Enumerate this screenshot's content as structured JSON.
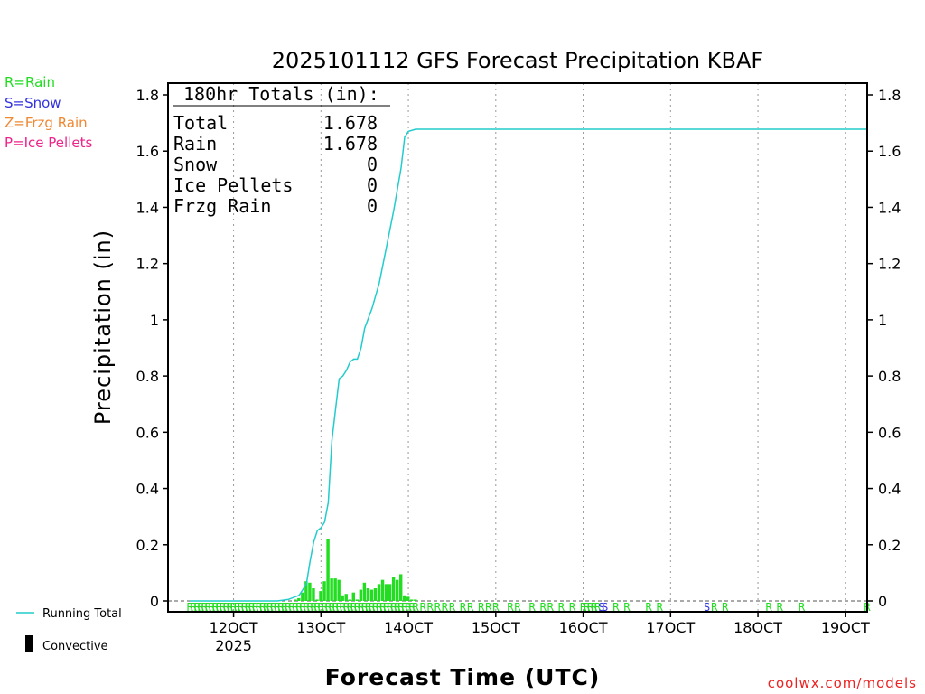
{
  "chart_data": {
    "type": "bar+line",
    "title": "2025101112 GFS Forecast Precipitation KBAF",
    "xlabel": "Forecast Time (UTC)",
    "ylabel": "Precipitation (in)",
    "ylim": [
      0,
      1.85
    ],
    "y_ticks": [
      "0",
      "0.2",
      "0.4",
      "0.6",
      "0.8",
      "1",
      "1.2",
      "1.4",
      "1.6",
      "1.8"
    ],
    "xlim_hours": [
      -6,
      186
    ],
    "x_ticks": [
      {
        "hour": 12,
        "label": "12OCT",
        "sub": "2025"
      },
      {
        "hour": 36,
        "label": "13OCT"
      },
      {
        "hour": 60,
        "label": "14OCT"
      },
      {
        "hour": 84,
        "label": "15OCT"
      },
      {
        "hour": 108,
        "label": "16OCT"
      },
      {
        "hour": 132,
        "label": "17OCT"
      },
      {
        "hour": 156,
        "label": "18OCT"
      },
      {
        "hour": 180,
        "label": "19OCT"
      }
    ],
    "legend": {
      "rain": {
        "label": "R=Rain",
        "color": "#22dd22"
      },
      "snow": {
        "label": "S=Snow",
        "color": "#3333dd"
      },
      "frzg": {
        "label": "Z=Frzg Rain",
        "color": "#ee8833"
      },
      "ice": {
        "label": "P=Ice Pellets",
        "color": "#ee2288"
      },
      "running_total": {
        "label": "Running Total",
        "color": "#22cccc"
      },
      "convective": {
        "label": "Convective",
        "color": "#000000"
      }
    },
    "totals_box": {
      "header": "180hr Totals (in):",
      "rows": [
        {
          "label": "Total",
          "value": "1.678"
        },
        {
          "label": "Rain",
          "value": "1.678"
        },
        {
          "label": "Snow",
          "value": "0"
        },
        {
          "label": "Ice Pellets",
          "value": "0"
        },
        {
          "label": "Frzg Rain",
          "value": "0"
        }
      ]
    },
    "running_total": [
      [
        0,
        0
      ],
      [
        24,
        0
      ],
      [
        27,
        0.005
      ],
      [
        30,
        0.02
      ],
      [
        31,
        0.04
      ],
      [
        32,
        0.06
      ],
      [
        33,
        0.14
      ],
      [
        34,
        0.21
      ],
      [
        35,
        0.25
      ],
      [
        36,
        0.26
      ],
      [
        37,
        0.28
      ],
      [
        38,
        0.35
      ],
      [
        39,
        0.57
      ],
      [
        40,
        0.68
      ],
      [
        41,
        0.79
      ],
      [
        42,
        0.8
      ],
      [
        43,
        0.82
      ],
      [
        44,
        0.85
      ],
      [
        45,
        0.86
      ],
      [
        46,
        0.86
      ],
      [
        47,
        0.9
      ],
      [
        48,
        0.97
      ],
      [
        50,
        1.04
      ],
      [
        52,
        1.13
      ],
      [
        54,
        1.26
      ],
      [
        56,
        1.39
      ],
      [
        58,
        1.54
      ],
      [
        59,
        1.65
      ],
      [
        60,
        1.67
      ],
      [
        62,
        1.678
      ],
      [
        186,
        1.678
      ]
    ],
    "bars": [
      [
        29,
        0.005
      ],
      [
        30,
        0.01
      ],
      [
        31,
        0.03
      ],
      [
        32,
        0.07
      ],
      [
        33,
        0.065
      ],
      [
        34,
        0.045
      ],
      [
        35,
        0.005
      ],
      [
        36,
        0.035
      ],
      [
        37,
        0.07
      ],
      [
        38,
        0.22
      ],
      [
        39,
        0.08
      ],
      [
        40,
        0.08
      ],
      [
        41,
        0.075
      ],
      [
        42,
        0.02
      ],
      [
        43,
        0.025
      ],
      [
        44,
        0.005
      ],
      [
        45,
        0.03
      ],
      [
        46,
        0.005
      ],
      [
        47,
        0.04
      ],
      [
        48,
        0.065
      ],
      [
        49,
        0.045
      ],
      [
        50,
        0.04
      ],
      [
        51,
        0.045
      ],
      [
        52,
        0.06
      ],
      [
        53,
        0.075
      ],
      [
        54,
        0.06
      ],
      [
        55,
        0.06
      ],
      [
        56,
        0.085
      ],
      [
        57,
        0.075
      ],
      [
        58,
        0.095
      ],
      [
        59,
        0.02
      ],
      [
        60,
        0.015
      ],
      [
        61,
        0.005
      ],
      [
        62,
        0.005
      ]
    ],
    "ptype_marks": [
      {
        "hour": 64,
        "type": "R"
      },
      {
        "hour": 66,
        "type": "R"
      },
      {
        "hour": 68,
        "type": "R"
      },
      {
        "hour": 70,
        "type": "R"
      },
      {
        "hour": 72,
        "type": "R"
      },
      {
        "hour": 75,
        "type": "R"
      },
      {
        "hour": 77,
        "type": "R"
      },
      {
        "hour": 80,
        "type": "R"
      },
      {
        "hour": 82,
        "type": "R"
      },
      {
        "hour": 84,
        "type": "R"
      },
      {
        "hour": 88,
        "type": "R"
      },
      {
        "hour": 90,
        "type": "R"
      },
      {
        "hour": 94,
        "type": "R"
      },
      {
        "hour": 97,
        "type": "R"
      },
      {
        "hour": 99,
        "type": "R"
      },
      {
        "hour": 102,
        "type": "R"
      },
      {
        "hour": 105,
        "type": "R"
      },
      {
        "hour": 108,
        "type": "R"
      },
      {
        "hour": 109,
        "type": "R"
      },
      {
        "hour": 110,
        "type": "R"
      },
      {
        "hour": 111,
        "type": "R"
      },
      {
        "hour": 112,
        "type": "R"
      },
      {
        "hour": 113,
        "type": "S"
      },
      {
        "hour": 114,
        "type": "S"
      },
      {
        "hour": 117,
        "type": "R"
      },
      {
        "hour": 120,
        "type": "R"
      },
      {
        "hour": 126,
        "type": "R"
      },
      {
        "hour": 129,
        "type": "R"
      },
      {
        "hour": 142,
        "type": "S"
      },
      {
        "hour": 144,
        "type": "R"
      },
      {
        "hour": 147,
        "type": "R"
      },
      {
        "hour": 159,
        "type": "R"
      },
      {
        "hour": 162,
        "type": "R"
      },
      {
        "hour": 168,
        "type": "R"
      },
      {
        "hour": 186,
        "type": "R"
      }
    ]
  },
  "credit": "coolwx.com/models"
}
